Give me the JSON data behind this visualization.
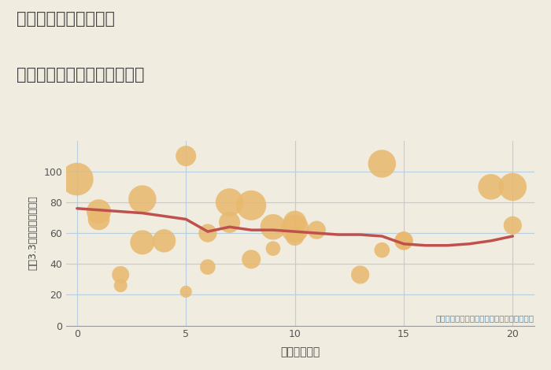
{
  "title_line1": "三重県鳥羽市堅神町の",
  "title_line2": "駅距離別中古マンション価格",
  "xlabel": "駅距離（分）",
  "ylabel": "坪（3.3㎡）単価（万円）",
  "annotation": "円の大きさは、取引のあった物件面積を示す",
  "background_color": "#f0ece0",
  "plot_bg_color": "#f0ece0",
  "grid_color": "#b8cfe0",
  "bubble_color": "#e8b86d",
  "bubble_alpha": 0.85,
  "line_color": "#c0504d",
  "line_width": 2.5,
  "xlim": [
    -0.5,
    21
  ],
  "ylim": [
    0,
    120
  ],
  "yticks": [
    0,
    20,
    40,
    60,
    80,
    100
  ],
  "xticks": [
    0,
    5,
    10,
    15,
    20
  ],
  "scatter_x": [
    0,
    1,
    1,
    2,
    2,
    3,
    3,
    4,
    5,
    5,
    6,
    6,
    7,
    7,
    8,
    8,
    9,
    9,
    10,
    10,
    10,
    11,
    13,
    14,
    14,
    15,
    15,
    19,
    20,
    20
  ],
  "scatter_y": [
    95,
    74,
    69,
    26,
    33,
    54,
    82,
    55,
    110,
    22,
    60,
    38,
    80,
    67,
    78,
    43,
    64,
    50,
    63,
    58,
    67,
    62,
    33,
    105,
    49,
    55,
    55,
    90,
    90,
    65
  ],
  "scatter_size": [
    900,
    500,
    400,
    150,
    250,
    500,
    650,
    450,
    350,
    120,
    280,
    200,
    650,
    380,
    750,
    300,
    550,
    180,
    650,
    300,
    450,
    280,
    280,
    650,
    200,
    280,
    280,
    550,
    650,
    280
  ],
  "trend_x": [
    0,
    1,
    2,
    3,
    4,
    5,
    6,
    7,
    8,
    9,
    10,
    11,
    12,
    13,
    14,
    15,
    16,
    17,
    18,
    19,
    20
  ],
  "trend_y": [
    76,
    75,
    74,
    73,
    71,
    69,
    61,
    64,
    62,
    62,
    61,
    60,
    59,
    59,
    58,
    53,
    52,
    52,
    53,
    55,
    58
  ]
}
